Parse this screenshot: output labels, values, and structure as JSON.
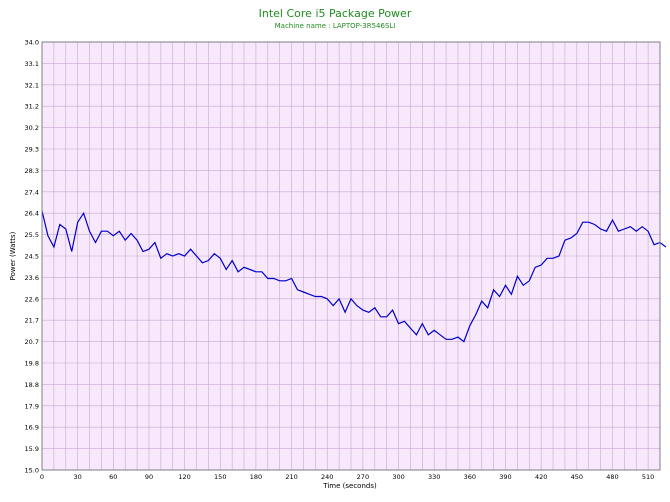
{
  "chart_data": {
    "type": "line",
    "title": "Intel Core i5 Package Power",
    "subtitle": "Machine name : LAPTOP-3R546SLI",
    "xlabel": "Time (seconds)",
    "ylabel": "Power (Watts)",
    "xlim": [
      0,
      520
    ],
    "ylim": [
      15.0,
      34.0
    ],
    "x_ticks": [
      "0",
      "30",
      "60",
      "90",
      "120",
      "150",
      "180",
      "210",
      "240",
      "270",
      "300",
      "330",
      "360",
      "390",
      "420",
      "450",
      "480",
      "510"
    ],
    "y_ticks": [
      "15.0",
      "15.9",
      "16.9",
      "17.9",
      "18.8",
      "19.8",
      "20.7",
      "21.7",
      "22.6",
      "23.6",
      "24.5",
      "25.5",
      "26.4",
      "27.4",
      "28.3",
      "29.3",
      "30.2",
      "31.2",
      "32.1",
      "33.1",
      "34.0"
    ],
    "grid": true,
    "colors": {
      "plot_background": "#f7e8fc",
      "grid": "#c9a7d4",
      "line": "#0000cc",
      "title": "#228b22"
    },
    "series": [
      {
        "x_start": 0,
        "x_step": 5,
        "values": [
          26.5,
          25.4,
          24.9,
          25.9,
          25.7,
          24.7,
          26.0,
          26.4,
          25.6,
          25.1,
          25.6,
          25.6,
          25.4,
          25.6,
          25.2,
          25.5,
          25.2,
          24.7,
          24.8,
          25.1,
          24.4,
          24.6,
          24.5,
          24.6,
          24.5,
          24.8,
          24.5,
          24.2,
          24.3,
          24.6,
          24.4,
          23.9,
          24.3,
          23.8,
          24.0,
          23.9,
          23.8,
          23.8,
          23.5,
          23.5,
          23.4,
          23.4,
          23.5,
          23.0,
          22.9,
          22.8,
          22.7,
          22.7,
          22.6,
          22.3,
          22.6,
          22.0,
          22.6,
          22.3,
          22.1,
          22.0,
          22.2,
          21.8,
          21.8,
          22.1,
          21.5,
          21.6,
          21.3,
          21.0,
          21.5,
          21.0,
          21.2,
          21.0,
          20.8,
          20.8,
          20.9,
          20.7,
          21.4,
          21.9,
          22.5,
          22.2,
          23.0,
          22.7,
          23.2,
          22.8,
          23.6,
          23.2,
          23.4,
          24.0,
          24.1,
          24.4,
          24.4,
          24.5,
          25.2,
          25.3,
          25.5,
          26.0,
          26.0,
          25.9,
          25.7,
          25.6,
          26.1,
          25.6,
          25.7,
          25.8,
          25.6,
          25.8,
          25.6,
          25.0,
          25.1,
          24.9
        ]
      }
    ]
  }
}
